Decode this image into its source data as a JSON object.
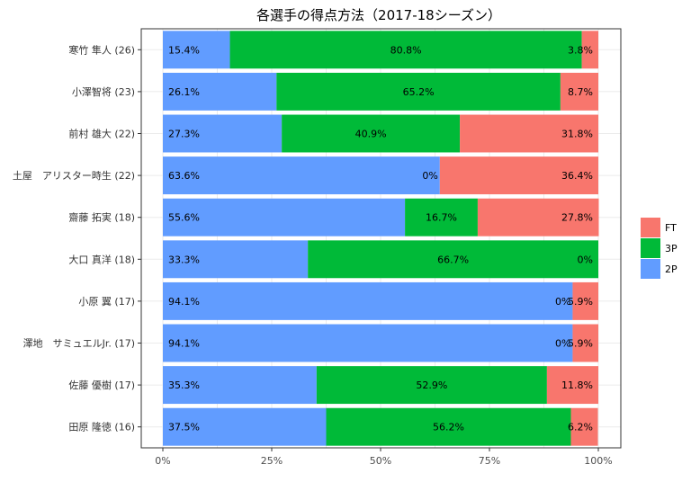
{
  "chart_data": {
    "type": "bar",
    "orientation": "horizontal",
    "stacked": "percent",
    "title": "各選手の得点方法（2017-18シーズン）",
    "categories": [
      "寒竹 隼人 (26)",
      "小澤智将 (23)",
      "前村 雄大 (22)",
      "土屋　アリスター時生 (22)",
      "齋藤 拓実 (18)",
      "大口 真洋 (18)",
      "小原 翼 (17)",
      "澤地　サミュエルJr. (17)",
      "佐藤 優樹 (17)",
      "田原 隆徳 (16)"
    ],
    "series": [
      {
        "name": "2P",
        "color": "#619CFF",
        "values": [
          15.4,
          26.1,
          27.3,
          63.6,
          55.6,
          33.3,
          94.1,
          94.1,
          35.3,
          37.5
        ],
        "labels": [
          "15.4%",
          "26.1%",
          "27.3%",
          "63.6%",
          "55.6%",
          "33.3%",
          "94.1%",
          "94.1%",
          "35.3%",
          "37.5%"
        ]
      },
      {
        "name": "3P",
        "color": "#00BA38",
        "values": [
          80.8,
          65.2,
          40.9,
          0,
          16.7,
          66.7,
          0,
          0,
          52.9,
          56.2
        ],
        "labels": [
          "80.8%",
          "65.2%",
          "40.9%",
          "0%",
          "16.7%",
          "66.7%",
          "0%",
          "0%",
          "52.9%",
          "56.2%"
        ]
      },
      {
        "name": "FT",
        "color": "#F8766D",
        "values": [
          3.8,
          8.7,
          31.8,
          36.4,
          27.8,
          0,
          5.9,
          5.9,
          11.8,
          6.2
        ],
        "labels": [
          "3.8%",
          "8.7%",
          "31.8%",
          "36.4%",
          "27.8%",
          "0%",
          "5.9%",
          "5.9%",
          "11.8%",
          "6.2%"
        ]
      }
    ],
    "xticks": [
      "0%",
      "25%",
      "50%",
      "75%",
      "100%"
    ],
    "xlim": [
      0,
      1
    ],
    "legend_order": [
      "FT",
      "3P",
      "2P"
    ],
    "legend_position": "right",
    "grid": true
  }
}
